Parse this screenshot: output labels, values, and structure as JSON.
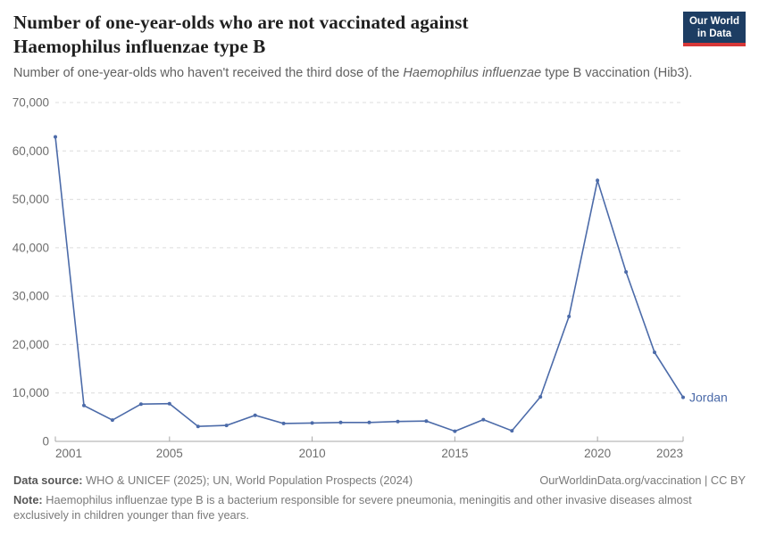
{
  "header": {
    "title": "Number of one-year-olds who are not vaccinated against Haemophilus influenzae type B",
    "subtitle": {
      "before": "Number of one-year-olds who haven't received the third dose of the ",
      "italic": "Haemophilus influenzae",
      "after": " type B vaccination (Hib3)."
    },
    "logo": {
      "line1": "Our World",
      "line2": "in Data",
      "bg_color": "#1d3d63",
      "bar_color": "#d73737"
    }
  },
  "chart_data": {
    "type": "line",
    "title": "Number of one-year-olds who are not vaccinated against Haemophilus influenzae type B",
    "xlabel": "",
    "ylabel": "",
    "xlim": [
      2001,
      2023
    ],
    "ylim": [
      0,
      70000
    ],
    "grid": "horizontal-dashed",
    "legend": "end-of-line-label",
    "yticks": [
      {
        "value": 0,
        "label": "0"
      },
      {
        "value": 10000,
        "label": "10,000"
      },
      {
        "value": 20000,
        "label": "20,000"
      },
      {
        "value": 30000,
        "label": "30,000"
      },
      {
        "value": 40000,
        "label": "40,000"
      },
      {
        "value": 50000,
        "label": "50,000"
      },
      {
        "value": 60000,
        "label": "60,000"
      },
      {
        "value": 70000,
        "label": "70,000"
      }
    ],
    "xticks": [
      {
        "value": 2001,
        "label": "2001"
      },
      {
        "value": 2005,
        "label": "2005"
      },
      {
        "value": 2010,
        "label": "2010"
      },
      {
        "value": 2015,
        "label": "2015"
      },
      {
        "value": 2020,
        "label": "2020"
      },
      {
        "value": 2023,
        "label": "2023"
      }
    ],
    "series": [
      {
        "name": "Jordan",
        "end_label": "Jordan",
        "color": "#4c6ba9",
        "x": [
          2001,
          2002,
          2003,
          2004,
          2005,
          2006,
          2007,
          2008,
          2009,
          2010,
          2011,
          2012,
          2013,
          2014,
          2015,
          2016,
          2017,
          2018,
          2019,
          2020,
          2021,
          2022,
          2023
        ],
        "values": [
          62900,
          7400,
          4400,
          7700,
          7800,
          3100,
          3300,
          5400,
          3700,
          3800,
          3900,
          3900,
          4100,
          4200,
          2100,
          4500,
          2200,
          9200,
          25800,
          53900,
          35000,
          18400,
          9100
        ]
      }
    ]
  },
  "footer": {
    "data_source_label": "Data source:",
    "data_source_text": " WHO & UNICEF (2025); UN, World Population Prospects (2024)",
    "citation": "OurWorldinData.org/vaccination | CC BY",
    "note_label": "Note:",
    "note_text": " Haemophilus influenzae type B is a bacterium responsible for severe pneumonia, meningitis and other invasive diseases almost exclusively in children younger than five years."
  }
}
